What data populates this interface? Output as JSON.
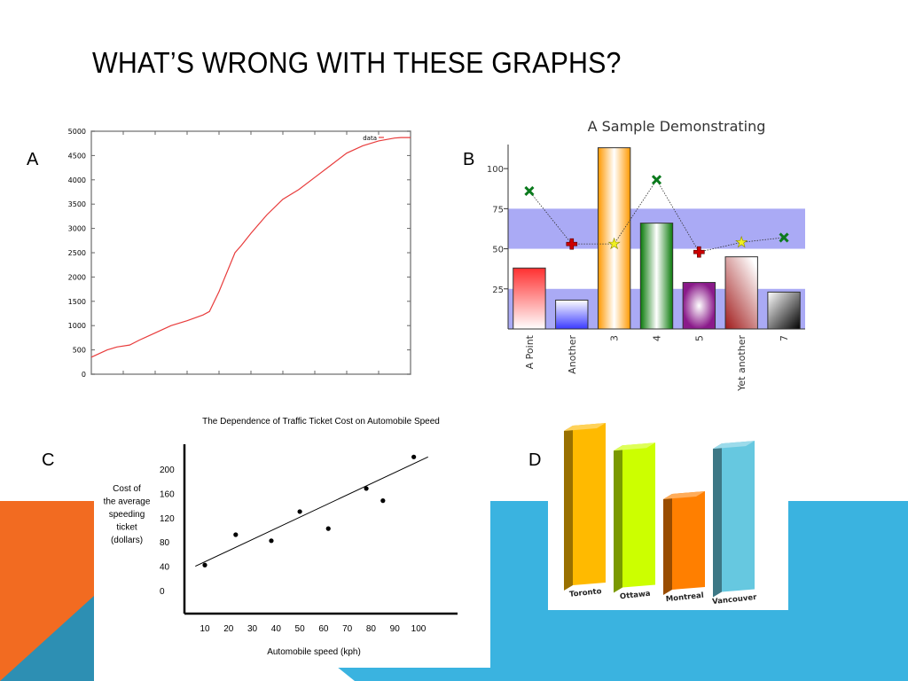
{
  "slide": {
    "title": "WHAT’S WRONG WITH THESE GRAPHS?",
    "colors": {
      "orange": "#f26b21",
      "blue": "#3ab3e0",
      "dark_blue": "#2d8fb3"
    }
  },
  "panel_labels": [
    "A",
    "B",
    "C",
    "D"
  ],
  "chart_data": [
    {
      "id": "A",
      "type": "line",
      "title": "",
      "xlabel": "",
      "ylabel": "",
      "ylim": [
        0,
        5000
      ],
      "yticks": [
        0,
        500,
        1000,
        1500,
        2000,
        2500,
        3000,
        3500,
        4000,
        4500,
        5000
      ],
      "xlim": [
        0,
        100
      ],
      "grid": false,
      "legend": {
        "placement": "top-right",
        "entries": [
          "data"
        ]
      },
      "series": [
        {
          "name": "data",
          "color": "#e83c3c",
          "x": [
            0,
            5,
            8,
            12,
            15,
            20,
            25,
            30,
            35,
            37,
            40,
            45,
            47,
            50,
            55,
            60,
            65,
            70,
            75,
            80,
            85,
            90,
            95,
            97,
            100
          ],
          "y": [
            350,
            500,
            560,
            600,
            700,
            850,
            1000,
            1100,
            1220,
            1290,
            1700,
            2500,
            2650,
            2900,
            3280,
            3600,
            3800,
            4050,
            4300,
            4550,
            4700,
            4800,
            4860,
            4870,
            4870
          ]
        }
      ]
    },
    {
      "id": "B",
      "type": "bar",
      "title": "A Sample Demonstrating",
      "xlabel": "",
      "ylabel": "",
      "ylim": [
        0,
        115
      ],
      "yticks": [
        25,
        50,
        75,
        100
      ],
      "bands": [
        [
          25,
          0
        ],
        [
          75,
          50
        ]
      ],
      "categories": [
        "A Point",
        "Another",
        "3",
        "4",
        "5",
        "Yet another",
        "7"
      ],
      "series": [
        {
          "name": "",
          "values": [
            38,
            18,
            113,
            66,
            29,
            45,
            23
          ],
          "colors": [
            "#ff3030",
            "#3a3aff",
            "#ff9900",
            "#0a7a0a",
            "#8a1a8a",
            "#a01a1a",
            "#000000"
          ]
        },
        {
          "name": "",
          "type": "line",
          "marker": "cross",
          "values": [
            null,
            53,
            null,
            null,
            48,
            null,
            null
          ],
          "color": "#cc0000"
        },
        {
          "name": "",
          "type": "line",
          "marker": "star",
          "values": [
            null,
            null,
            53,
            null,
            null,
            54,
            null
          ],
          "color": "#f0f020"
        },
        {
          "name": "",
          "type": "line",
          "marker": "x",
          "values": [
            86,
            null,
            null,
            93,
            null,
            null,
            57
          ],
          "color": "#0b7a1d"
        }
      ],
      "connector_values": [
        86,
        53,
        53,
        93,
        48,
        54,
        57
      ]
    },
    {
      "id": "C",
      "type": "scatter",
      "title": "The Dependence of Traffic Ticket Cost on Automobile Speed",
      "xlabel": "Automobile speed (kph)",
      "ylabel": "Cost of the average speeding ticket (dollars)",
      "ylabel_lines": [
        "Cost of",
        "the average",
        "speeding",
        "ticket",
        "(dollars)"
      ],
      "xticks": [
        10,
        20,
        30,
        40,
        50,
        60,
        70,
        80,
        90,
        100
      ],
      "yticks": [
        0,
        40,
        80,
        120,
        160,
        200
      ],
      "points": [
        {
          "x": 10,
          "y": 42
        },
        {
          "x": 23,
          "y": 92
        },
        {
          "x": 38,
          "y": 82
        },
        {
          "x": 50,
          "y": 130
        },
        {
          "x": 62,
          "y": 102
        },
        {
          "x": 78,
          "y": 168
        },
        {
          "x": 85,
          "y": 148
        },
        {
          "x": 98,
          "y": 220
        }
      ],
      "trendline": {
        "x": [
          6,
          104
        ],
        "y": [
          40,
          220
        ]
      }
    },
    {
      "id": "D",
      "type": "bar",
      "title": "",
      "xlabel": "",
      "ylabel": "",
      "categories": [
        "Toronto",
        "Ottawa",
        "Montreal",
        "Vancouver"
      ],
      "values": [
        100,
        89,
        60,
        93
      ],
      "colors": [
        "#ffba00",
        "#ccff00",
        "#ff7f00",
        "#66c8e0"
      ]
    }
  ]
}
